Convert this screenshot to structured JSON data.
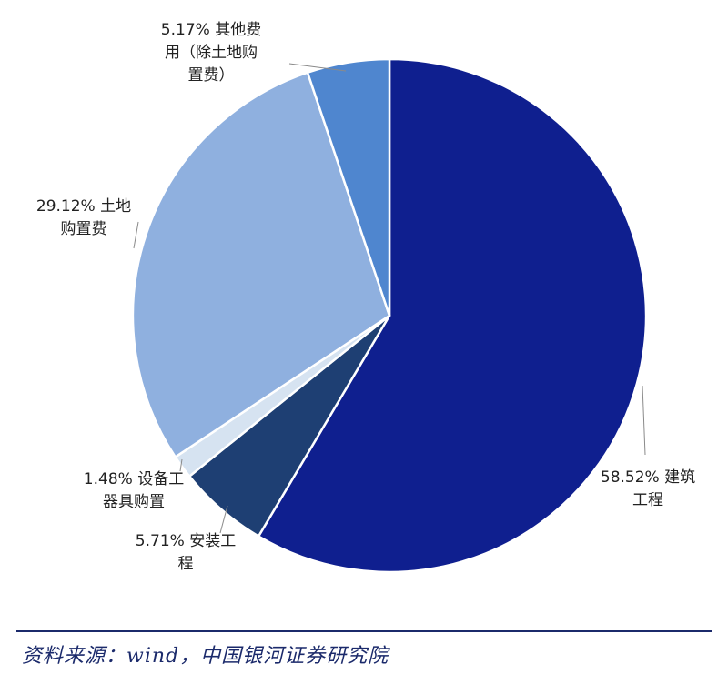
{
  "chart_data": {
    "type": "pie",
    "title": "",
    "slices": [
      {
        "label_lines": [
          "58.52% 建筑",
          "工程"
        ],
        "category": "建筑工程",
        "value": 58.52,
        "color": "#0f1f8f"
      },
      {
        "label_lines": [
          "5.71% 安装工",
          "程"
        ],
        "category": "安装工程",
        "value": 5.71,
        "color": "#1e3f73"
      },
      {
        "label_lines": [
          "1.48% 设备工",
          "器具购置"
        ],
        "category": "设备工器具购置",
        "value": 1.48,
        "color": "#d6e3f1"
      },
      {
        "label_lines": [
          "29.12% 土地",
          "购置费"
        ],
        "category": "土地购置费",
        "value": 29.12,
        "color": "#8fb0df"
      },
      {
        "label_lines": [
          "5.17% 其他费",
          "用（除土地购",
          "置费）"
        ],
        "category": "其他费用（除土地购置费）",
        "value": 5.17,
        "color": "#4f86cf"
      }
    ]
  },
  "source": {
    "text": "资料来源：wind，中国银河证券研究院",
    "color": "#1b2a6b"
  }
}
